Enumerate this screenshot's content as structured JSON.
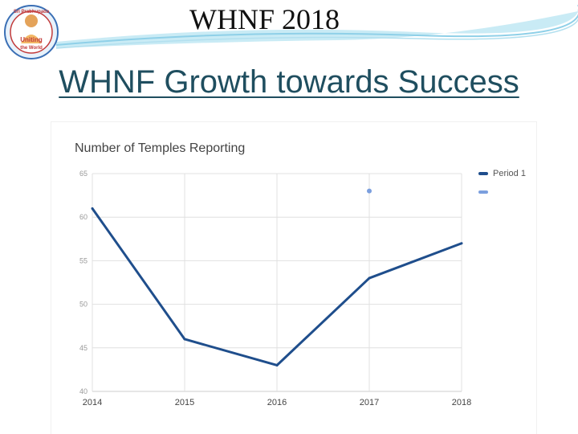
{
  "header": {
    "title": "WHNF 2018",
    "logo_text": [
      "Sri Prabhupada",
      "Uniting",
      "the World"
    ]
  },
  "slide": {
    "title": "WHNF Growth towards Success"
  },
  "colors": {
    "title": "#1f4e5f",
    "series_primary": "#1f4e8c",
    "series_secondary": "#7b9fde",
    "grid": "#e0e0e0",
    "header_wave": "#8fd0e8"
  },
  "chart_data": {
    "type": "line",
    "title": "Number of Temples Reporting",
    "xlabel": "",
    "ylabel": "",
    "categories": [
      "2014",
      "2015",
      "2016",
      "2017",
      "2018"
    ],
    "ylim": [
      40,
      65
    ],
    "yticks": [
      40,
      45,
      50,
      55,
      60,
      65
    ],
    "grid": true,
    "legend_position": "top-right",
    "series": [
      {
        "name": "Period 1",
        "values": [
          61,
          46,
          43,
          53,
          57
        ],
        "style": "line"
      },
      {
        "name": "",
        "values": [
          null,
          null,
          null,
          63,
          null
        ],
        "style": "point"
      }
    ]
  }
}
